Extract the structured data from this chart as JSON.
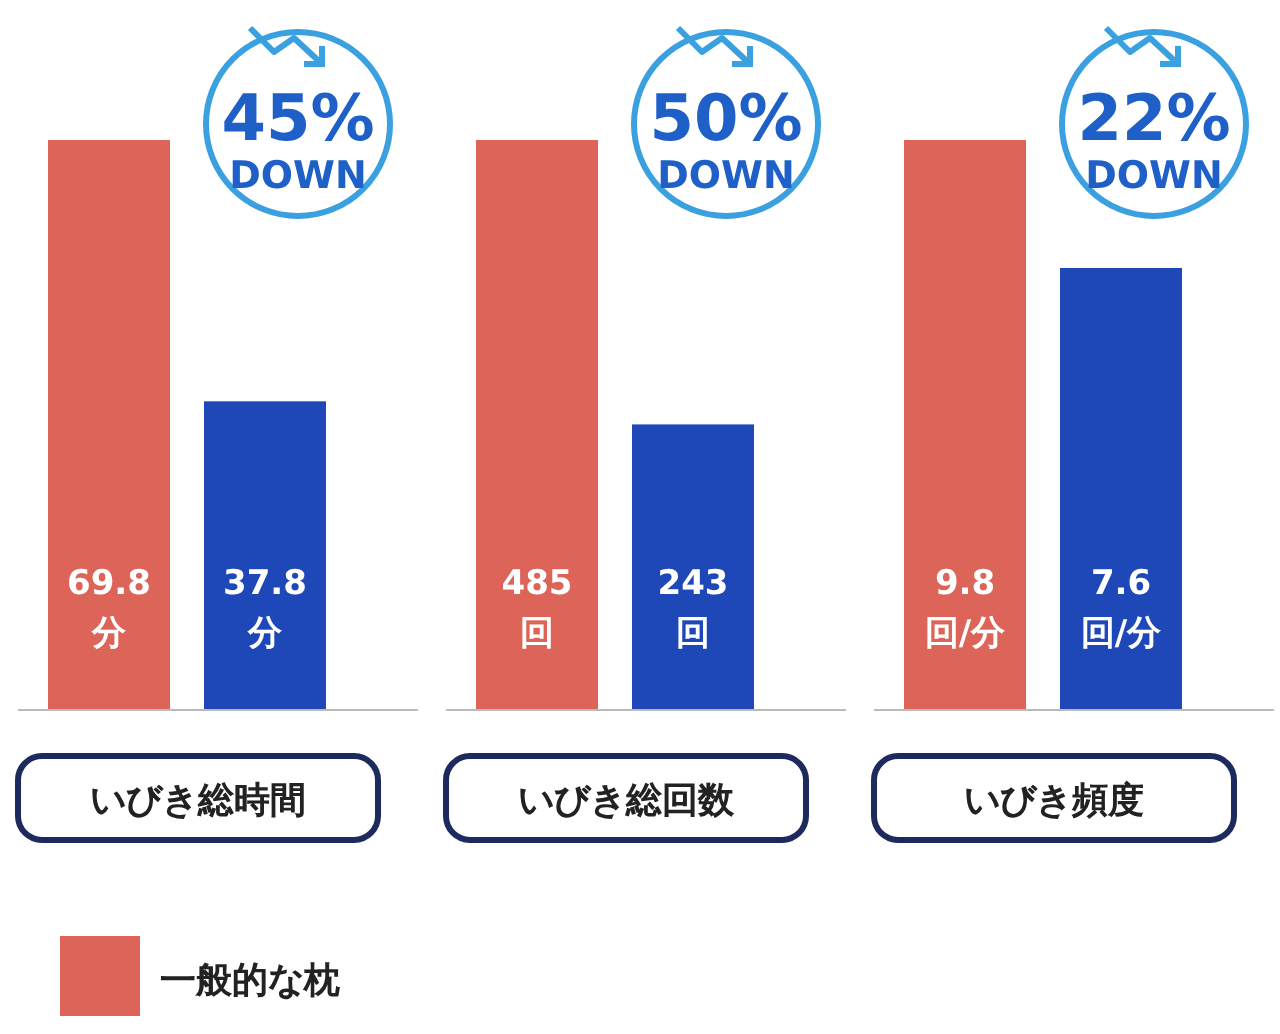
{
  "chart_data": [
    {
      "type": "bar",
      "xlabel": "いびき総時間",
      "categories": [
        null
      ],
      "legend": "bottom",
      "annotations": [
        "45%\nDOWN"
      ],
      "series": [
        {
          "name": "一般的な枕",
          "color": "#dc6458",
          "values": [
            69.8
          ],
          "value_labels": [
            "69.8\n分"
          ]
        },
        {
          "color": "#1e48b8",
          "values": [
            37.8
          ],
          "value_labels": [
            "37.8\n分"
          ]
        }
      ]
    },
    {
      "type": "bar",
      "xlabel": "いびき総回数",
      "categories": [
        null
      ],
      "annotations": [
        "50%\nDOWN"
      ],
      "series": [
        {
          "color": "#dc6458",
          "values": [
            485
          ],
          "value_labels": [
            "485\n回"
          ]
        },
        {
          "color": "#1e48b8",
          "values": [
            243
          ],
          "value_labels": [
            "243\n回"
          ]
        }
      ]
    },
    {
      "type": "bar",
      "xlabel": "いびき頻度",
      "categories": [
        null
      ],
      "annotations": [
        "22%\nDOWN"
      ],
      "series": [
        {
          "color": "#dc6458",
          "values": [
            9.8
          ],
          "value_labels": [
            "9.8\n回/分"
          ]
        },
        {
          "color": "#1e48b8",
          "values": [
            7.6
          ],
          "value_labels": [
            "7.6\n回/分"
          ]
        }
      ]
    }
  ]
}
